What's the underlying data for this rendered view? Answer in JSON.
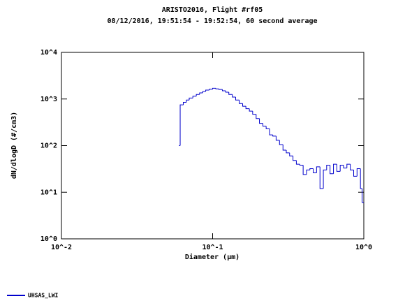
{
  "chart_data": {
    "type": "step",
    "title": "ARISTO2016, Flight #rf05",
    "subtitle": "08/12/2016, 19:51:54 - 19:52:54, 60 second average",
    "x_label": "Diameter (µm)",
    "y_label": "dN/dlogD (#/cm3)",
    "log_x": true,
    "log_y": true,
    "xlim": [
      0.01,
      1
    ],
    "ylim": [
      1,
      10000
    ],
    "xticks": [
      {
        "value": 0.01,
        "label": "10^-2"
      },
      {
        "value": 0.1,
        "label": "10^-1"
      },
      {
        "value": 1,
        "label": "10^0"
      }
    ],
    "yticks": [
      {
        "value": 1,
        "label": "10^0"
      },
      {
        "value": 10,
        "label": "10^1"
      },
      {
        "value": 100,
        "label": "10^2"
      },
      {
        "value": 1000,
        "label": "10^3"
      },
      {
        "value": 10000,
        "label": "10^4"
      }
    ],
    "legend": "bottom-left",
    "series": [
      {
        "name": "UHSAS_LWI",
        "color": "#0000cc",
        "bins": [
          0.06,
          0.061,
          0.064,
          0.067,
          0.07,
          0.074,
          0.078,
          0.082,
          0.086,
          0.09,
          0.095,
          0.1,
          0.105,
          0.11,
          0.116,
          0.122,
          0.128,
          0.135,
          0.142,
          0.15,
          0.158,
          0.166,
          0.175,
          0.184,
          0.194,
          0.204,
          0.215,
          0.226,
          0.238,
          0.25,
          0.263,
          0.277,
          0.292,
          0.307,
          0.323,
          0.34,
          0.358,
          0.377,
          0.397,
          0.418,
          0.44,
          0.463,
          0.487,
          0.513,
          0.54,
          0.568,
          0.598,
          0.63,
          0.663,
          0.698,
          0.735,
          0.773,
          0.814,
          0.857,
          0.902,
          0.95,
          0.975,
          1.0
        ],
        "values": [
          100,
          750,
          850,
          950,
          1050,
          1150,
          1250,
          1350,
          1450,
          1550,
          1620,
          1700,
          1650,
          1600,
          1500,
          1400,
          1250,
          1100,
          950,
          800,
          700,
          620,
          550,
          470,
          380,
          300,
          260,
          230,
          170,
          160,
          130,
          105,
          80,
          70,
          60,
          48,
          40,
          38,
          24,
          30,
          32,
          26,
          35,
          12,
          30,
          38,
          25,
          40,
          28,
          38,
          33,
          40,
          30,
          22,
          32,
          12,
          6
        ]
      }
    ]
  }
}
